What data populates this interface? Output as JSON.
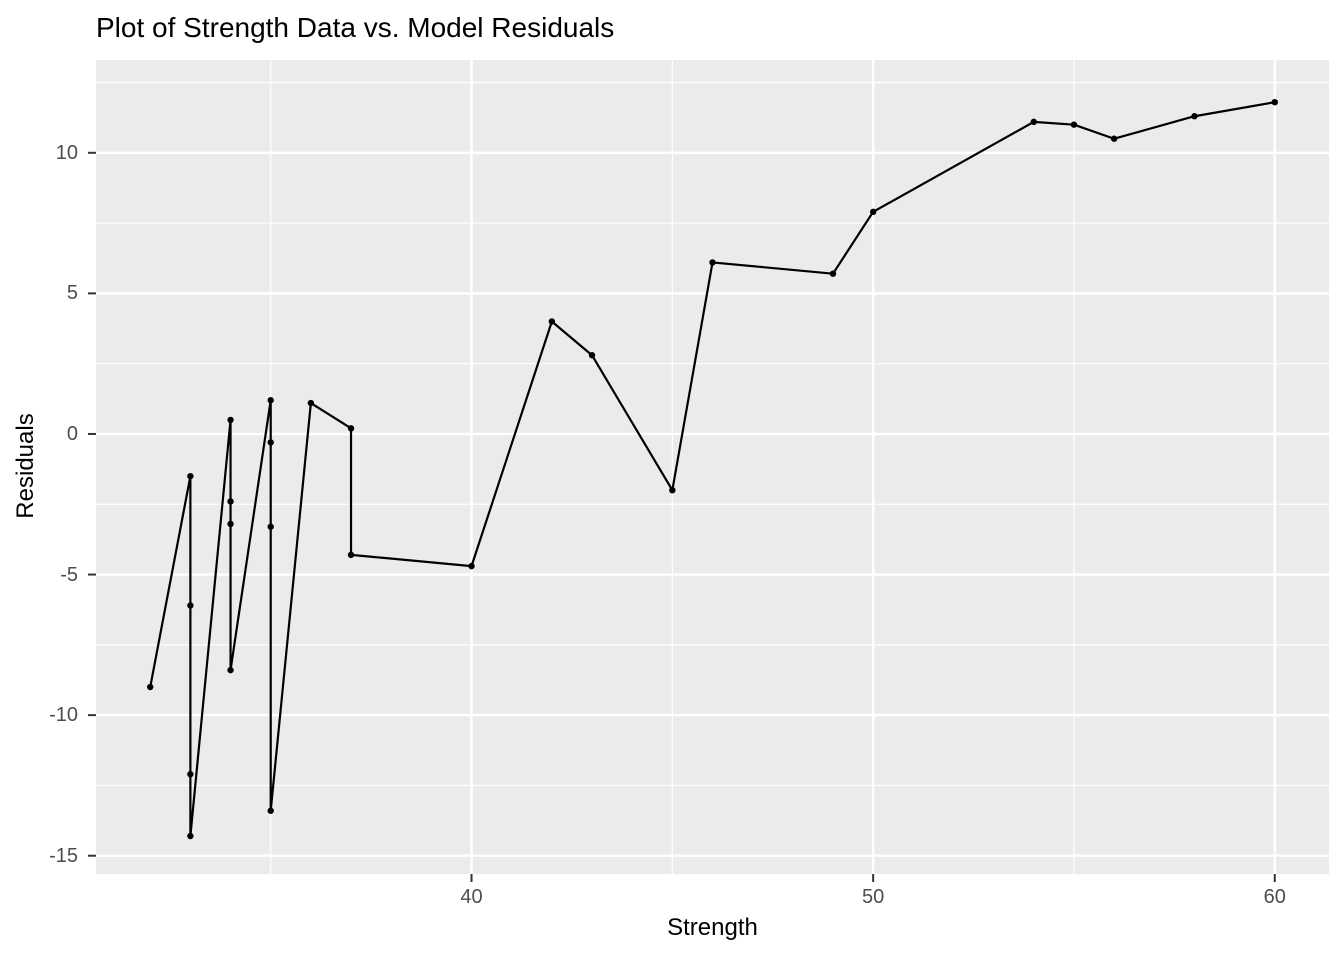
{
  "title": "Plot of Strength Data vs. Model Residuals",
  "chart_data": {
    "type": "line",
    "title": "Plot of Strength Data vs. Model Residuals",
    "xlabel": "Strength",
    "ylabel": "Residuals",
    "xlim": [
      30.65,
      61.35
    ],
    "ylim": [
      -15.65,
      13.3
    ],
    "x_ticks": [
      40,
      50,
      60
    ],
    "y_ticks": [
      -15,
      -10,
      -5,
      0,
      5,
      10
    ],
    "x_minor_ticks": [
      35,
      45,
      55
    ],
    "y_minor_ticks": [
      -12.5,
      -7.5,
      -2.5,
      2.5,
      7.5,
      12.5
    ],
    "grid": true,
    "legend": "none",
    "marker": "point",
    "series": [
      {
        "name": "residuals",
        "points": [
          [
            32,
            -9.0
          ],
          [
            33,
            -1.5
          ],
          [
            33,
            -6.1
          ],
          [
            33,
            -12.1
          ],
          [
            33,
            -14.3
          ],
          [
            34,
            0.5
          ],
          [
            34,
            -2.4
          ],
          [
            34,
            -3.2
          ],
          [
            34,
            -8.4
          ],
          [
            35,
            1.2
          ],
          [
            35,
            -0.3
          ],
          [
            35,
            -3.3
          ],
          [
            35,
            -13.4
          ],
          [
            36,
            1.1
          ],
          [
            37,
            0.2
          ],
          [
            37,
            -4.3
          ],
          [
            40,
            -4.7
          ],
          [
            42,
            4.0
          ],
          [
            43,
            2.8
          ],
          [
            45,
            -2.0
          ],
          [
            46,
            6.1
          ],
          [
            49,
            5.7
          ],
          [
            50,
            7.9
          ],
          [
            54,
            11.1
          ],
          [
            55,
            11.0
          ],
          [
            56,
            10.5
          ],
          [
            58,
            11.3
          ],
          [
            60,
            11.8
          ]
        ]
      }
    ],
    "colors": {
      "line": "#000000",
      "point": "#000000",
      "panel_background": "#ebebeb",
      "gridline": "#ffffff",
      "tick_mark": "#333333",
      "tick_label": "#4d4d4d",
      "title_text": "#000000",
      "figure_background": "#ffffff"
    }
  }
}
